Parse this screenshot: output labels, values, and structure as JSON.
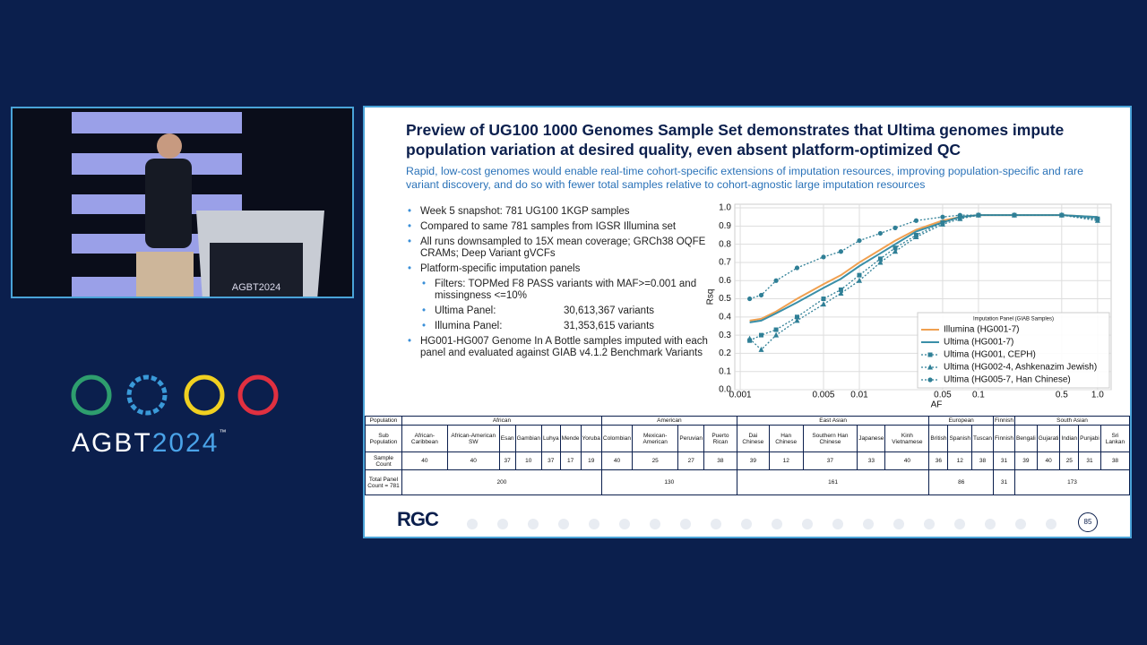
{
  "branding": {
    "name": "AGBT",
    "year": "2024",
    "tm": "™",
    "podium": "AGBT2024"
  },
  "slide": {
    "title": "Preview of UG100 1000 Genomes Sample Set demonstrates that Ultima genomes impute population variation at desired quality, even absent platform-optimized QC",
    "subtitle": "Rapid, low-cost genomes would enable real-time cohort-specific extensions of imputation resources, improving population-specific and rare variant discovery, and do so with fewer total samples relative to cohort-agnostic large imputation resources",
    "bullets": [
      {
        "level": 1,
        "text": "Week 5 snapshot: 781 UG100 1KGP samples"
      },
      {
        "level": 1,
        "text": "Compared to same 781 samples from IGSR Illumina set"
      },
      {
        "level": 1,
        "text": "All runs downsampled to 15X mean coverage; GRCh38 OQFE CRAMs; Deep Variant gVCFs"
      },
      {
        "level": 1,
        "text": "Platform-specific imputation panels"
      },
      {
        "level": 2,
        "text": "Filters: TOPMed F8 PASS variants with MAF>=0.001 and missingness <=10%"
      },
      {
        "level": 2,
        "text": "Ultima Panel:",
        "value": "30,613,367 variants"
      },
      {
        "level": 2,
        "text": "Illumina Panel:",
        "value": "31,353,615 variants"
      },
      {
        "level": 1,
        "text": "HG001-HG007 Genome In A Bottle samples imputed with each panel and evaluated against GIAB v4.1.2 Benchmark Variants"
      }
    ],
    "table": {
      "row_headers": [
        "Population",
        "Sub Population",
        "Sample Count",
        "Total Panel Count = 781"
      ],
      "groups": [
        {
          "name": "African",
          "subpopulations": [
            "African-Caribbean",
            "African-American SW",
            "Esan",
            "Gambian",
            "Luhya",
            "Mende",
            "Yoruba"
          ],
          "counts": [
            40,
            40,
            37,
            10,
            37,
            17,
            19
          ],
          "total": 200
        },
        {
          "name": "American",
          "subpopulations": [
            "Colombian",
            "Mexican-American",
            "Peruvian",
            "Puerto Rican"
          ],
          "counts": [
            40,
            25,
            27,
            38
          ],
          "total": 130
        },
        {
          "name": "East Asian",
          "subpopulations": [
            "Dai Chinese",
            "Han Chinese",
            "Southern Han Chinese",
            "Japanese",
            "Kinh Vietnamese"
          ],
          "counts": [
            39,
            12,
            37,
            33,
            40
          ],
          "total": 161
        },
        {
          "name": "European",
          "subpopulations": [
            "British",
            "Spanish",
            "Tuscan"
          ],
          "counts": [
            36,
            12,
            38
          ],
          "total": 86
        },
        {
          "name": "Finnish",
          "subpopulations": [
            "Finnish"
          ],
          "counts": [
            31
          ],
          "total": 31
        },
        {
          "name": "South Asian",
          "subpopulations": [
            "Bengali",
            "Gujarati",
            "Indian",
            "Punjabi",
            "Sri Lankan"
          ],
          "counts": [
            39,
            40,
            25,
            31,
            38
          ],
          "total": 173
        }
      ]
    },
    "footer": {
      "logo": "RGC",
      "page": "85"
    }
  },
  "chart_data": {
    "type": "line",
    "x_label": "AF",
    "y_label": "Rsq",
    "log_x": true,
    "grid": true,
    "legend_title": "Imputation Panel (GIAB Samples)",
    "legend_loc": "lower right",
    "xlim": [
      0.0009,
      1.3
    ],
    "xticks": [
      0.001,
      0.005,
      0.01,
      0.05,
      0.1,
      0.5,
      {
        "value": 1,
        "label": "1.0"
      }
    ],
    "ylim": [
      0,
      1.02
    ],
    "yticks": [
      {
        "value": 0,
        "label": "0.0"
      },
      0.1,
      0.2,
      0.3,
      0.4,
      0.5,
      0.6,
      0.7,
      0.8,
      0.9,
      {
        "value": 1,
        "label": "1.0"
      }
    ],
    "x": [
      0.0012,
      0.0015,
      0.002,
      0.003,
      0.005,
      0.007,
      0.01,
      0.015,
      0.02,
      0.03,
      0.05,
      0.07,
      0.1,
      0.2,
      0.5,
      1.0
    ],
    "series": [
      {
        "name": "Illumina (HG001-7)",
        "color": "#f0a050",
        "linestyle": "solid",
        "marker": "none",
        "values": [
          0.38,
          0.39,
          0.43,
          0.5,
          0.58,
          0.63,
          0.7,
          0.77,
          0.82,
          0.88,
          0.93,
          0.95,
          0.96,
          0.96,
          0.96,
          0.95
        ]
      },
      {
        "name": "Ultima (HG001-7)",
        "color": "#3a8fa8",
        "linestyle": "solid",
        "marker": "none",
        "values": [
          0.37,
          0.38,
          0.42,
          0.48,
          0.56,
          0.61,
          0.68,
          0.75,
          0.8,
          0.87,
          0.92,
          0.95,
          0.96,
          0.96,
          0.96,
          0.95
        ]
      },
      {
        "name": "Ultima (HG001, CEPH)",
        "color": "#2f7f96",
        "linestyle": "dotted",
        "marker": "square",
        "values": [
          0.27,
          0.3,
          0.33,
          0.4,
          0.5,
          0.55,
          0.63,
          0.72,
          0.78,
          0.85,
          0.92,
          0.95,
          0.96,
          0.96,
          0.96,
          0.94
        ]
      },
      {
        "name": "Ultima (HG002-4, Ashkenazim Jewish)",
        "color": "#2f7f96",
        "linestyle": "dotted",
        "marker": "triangle",
        "values": [
          0.28,
          0.22,
          0.3,
          0.38,
          0.47,
          0.53,
          0.6,
          0.7,
          0.76,
          0.84,
          0.91,
          0.94,
          0.96,
          0.96,
          0.96,
          0.93
        ]
      },
      {
        "name": "Ultima (HG005-7, Han Chinese)",
        "color": "#2f7f96",
        "linestyle": "dotted",
        "marker": "circle",
        "values": [
          0.5,
          0.52,
          0.6,
          0.67,
          0.73,
          0.76,
          0.82,
          0.86,
          0.89,
          0.93,
          0.95,
          0.96,
          0.96,
          0.96,
          0.96,
          0.94
        ]
      }
    ]
  }
}
